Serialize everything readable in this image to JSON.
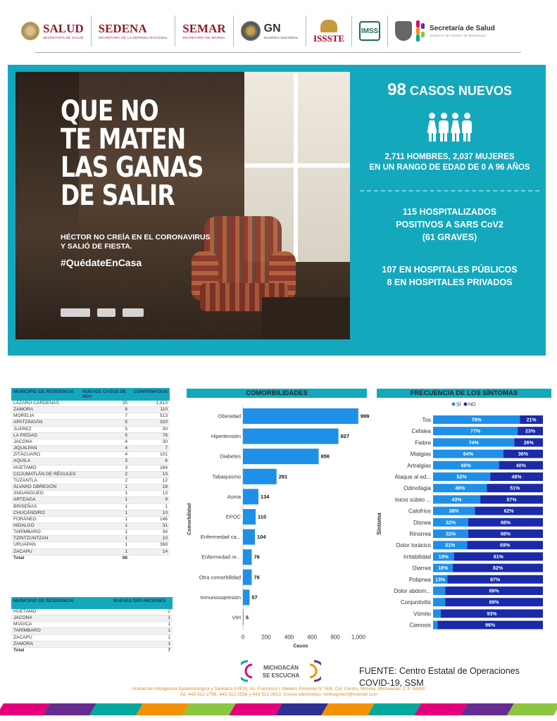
{
  "header": {
    "logos": [
      {
        "word": "SALUD",
        "sub": "SECRETARÍA DE SALUD"
      },
      {
        "word": "SEDENA",
        "sub": "SECRETARÍA DE LA DEFENSA NACIONAL"
      },
      {
        "word": "SEMAR",
        "sub": "SECRETARÍA DE MARINA"
      },
      {
        "word": "GN",
        "sub": "GUARDIA NACIONAL"
      },
      {
        "word": "ISSSTE"
      },
      {
        "word": "IMSS"
      },
      {
        "word": "Secretaría de Salud",
        "sub": "Gobierno del Estado de Michoacán"
      }
    ]
  },
  "banner": {
    "headline": "QUE NO\nTE MATEN\nLAS GANAS\nDE SALIR",
    "subhead": "HÉCTOR NO CREÍA EN EL CORONAVIRUS\nY SALIÓ DE FIESTA.",
    "hashtag": "#QuédateEnCasa",
    "new_cases_number": "98",
    "new_cases_label": "CASOS NUEVOS",
    "gender_text": "2,711 HOMBRES, 2,037 MUJERES\nEN UN RANGO DE EDAD DE 0 A 96 AÑOS",
    "hospitalized_text": "115 HOSPITALIZADOS\nPOSITIVOS A SARS CoV2\n(61 GRAVES)",
    "hospitals_text": "107 EN HOSPITALES PÚBLICOS\n8 EN HOSPITALES PRIVADOS"
  },
  "cases_table": {
    "headers": [
      "MUNICIPIO DE RESIDENCIA",
      "NUEVOS CASOS DE HOY",
      "CONFIRMADOS"
    ],
    "rows": [
      [
        "LÁZARO CÁRDENAS",
        "35",
        "1,813"
      ],
      [
        "ZAMORA",
        "8",
        "110"
      ],
      [
        "MORELIA",
        "7",
        "513"
      ],
      [
        "APATZINGÁN",
        "5",
        "320"
      ],
      [
        "JUÁREZ",
        "5",
        "30"
      ],
      [
        "LA PIEDAD",
        "5",
        "76"
      ],
      [
        "JACONA",
        "4",
        "30"
      ],
      [
        "JIQUILPAN",
        "4",
        "7"
      ],
      [
        "ZITÁCUARO",
        "4",
        "101"
      ],
      [
        "AQUILA",
        "3",
        "6"
      ],
      [
        "HUETAMO",
        "3",
        "184"
      ],
      [
        "COJUMATLÁN DE RÉGULES",
        "2",
        "10"
      ],
      [
        "TUZANTLA",
        "2",
        "12"
      ],
      [
        "ÁLVARO OBREGÓN",
        "1",
        "18"
      ],
      [
        "ANGANGUEO",
        "1",
        "13"
      ],
      [
        "ARTEAGA",
        "1",
        "9"
      ],
      [
        "BRISEÑAS",
        "1",
        "1"
      ],
      [
        "CHUCÁNDIRO",
        "1",
        "10"
      ],
      [
        "FORÁNEO",
        "1",
        "146"
      ],
      [
        "HIDALGO",
        "1",
        "31"
      ],
      [
        "TARÍMBARO",
        "1",
        "34"
      ],
      [
        "TZINTZUNTZAN",
        "1",
        "10"
      ],
      [
        "URUAPAN",
        "1",
        "368"
      ],
      [
        "ZACAPU",
        "1",
        "14"
      ]
    ],
    "total_label": "Total",
    "total_value": "98"
  },
  "deaths_table": {
    "headers": [
      "MUNICIPIO DE RESIDENCIA",
      "NUEVAS DEFUNCIONES"
    ],
    "rows": [
      [
        "HUETAMO",
        "2"
      ],
      [
        "JACONA",
        "1"
      ],
      [
        "MÚGICA",
        "1"
      ],
      [
        "TARÍMBARO",
        "1"
      ],
      [
        "ZACAPU",
        "1"
      ],
      [
        "ZAMORA",
        "1"
      ]
    ],
    "total_label": "Total",
    "total_value": "7"
  },
  "chart_data": [
    {
      "type": "bar",
      "orientation": "horizontal",
      "title": "COMORBILIDADES",
      "xlabel": "Casos",
      "ylabel": "Comorbilidad",
      "categories": [
        "Obesidad",
        "Hipertensión",
        "Diabetes",
        "Tabaquismo",
        "Asma",
        "EPOC",
        "Enfermedad ca...",
        "Enfermedad re...",
        "Otra comorbilidad",
        "Inmunosupresión",
        "VIH"
      ],
      "values": [
        999,
        827,
        656,
        291,
        134,
        110,
        104,
        76,
        76,
        57,
        5
      ],
      "xlim": [
        0,
        1000
      ],
      "xticks": [
        "0",
        "200",
        "400",
        "600",
        "800",
        "1,000"
      ],
      "color": "#1e90e8"
    },
    {
      "type": "bar",
      "orientation": "horizontal",
      "stacked": true,
      "title": "FRECUENCIA DE LOS SÍNTOMAS",
      "ylabel": "Síntoma",
      "legend": [
        "SÍ",
        "NO"
      ],
      "legend_position": "top",
      "categories": [
        "Tos",
        "Cefalea",
        "Fiebre",
        "Mialgias",
        "Artralgias",
        "Ataque al ed...",
        "Odinofagia",
        "Inicio súbito ...",
        "Calofríos",
        "Disnea",
        "Rinorrea",
        "Dolor torácico",
        "Irritabilidad",
        "Diarrea",
        "Polipnea",
        "Dolor abdom...",
        "Conjuntivitis",
        "Vómito",
        "Cianosis"
      ],
      "series": [
        {
          "name": "SÍ",
          "color": "#1e90e8",
          "values": [
            79,
            77,
            74,
            64,
            60,
            52,
            49,
            43,
            38,
            32,
            32,
            31,
            19,
            18,
            13,
            11,
            11,
            7,
            4
          ]
        },
        {
          "name": "NO",
          "color": "#1a2aa8",
          "values": [
            21,
            23,
            26,
            36,
            40,
            48,
            51,
            57,
            62,
            68,
            68,
            69,
            81,
            82,
            87,
            89,
            89,
            93,
            96
          ]
        }
      ],
      "labels_si": [
        "79%",
        "77%",
        "74%",
        "64%",
        "60%",
        "52%",
        "49%",
        "43%",
        "38%",
        "32%",
        "32%",
        "31%",
        "19%",
        "18%",
        "13%",
        "",
        "",
        "",
        ""
      ],
      "labels_no": [
        "21%",
        "23%",
        "26%",
        "36%",
        "40%",
        "48%",
        "51%",
        "57%",
        "62%",
        "68%",
        "68%",
        "69%",
        "81%",
        "82%",
        "87%",
        "89%",
        "89%",
        "93%",
        "96%"
      ],
      "xlim": [
        0,
        100
      ],
      "xticks": [
        "0%",
        "20%",
        "40%",
        "60%",
        "80%",
        "100%"
      ]
    }
  ],
  "footer": {
    "logo_line1": "MICHOACÁN",
    "logo_line2": "SE ESCUCHA",
    "source": "FUENTE: Centro Estatal de Operaciones\nCOVID-19, SSM",
    "address": "Unidad de Inteligencia Epidemiológica y Sanitaria (UIES). Av. Francisco I. Madero Poniente N° 508, Col. Centro, Morelia, Michoacán, C.P. 58000\nTel. 443-312-2756, 443-312-2556 y 443-312-2813, Correo electrónico: notinegmich@hotmail.com"
  }
}
